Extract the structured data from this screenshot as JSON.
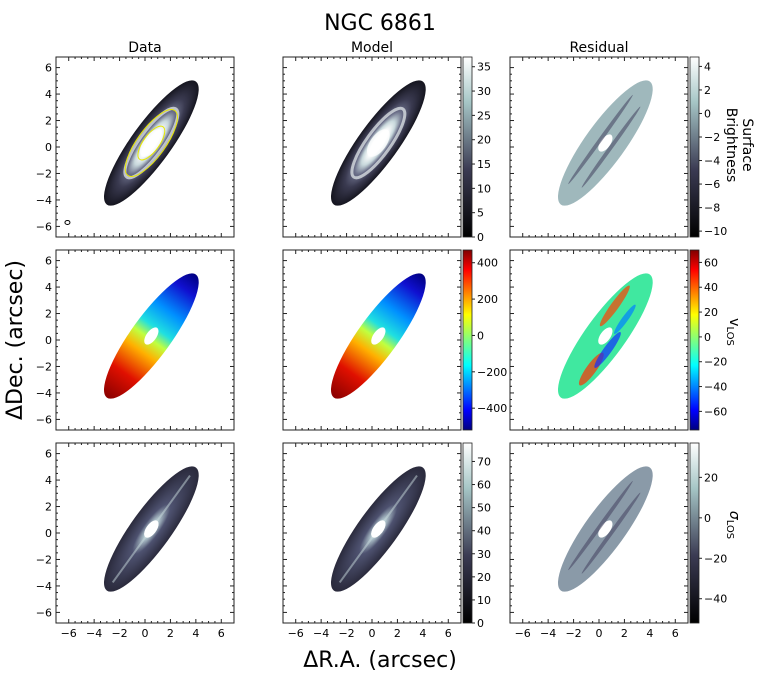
{
  "chart_data": {
    "type": "heatmap",
    "title": "NGC 6861",
    "xlabel": "ΔR.A. (arcsec)",
    "ylabel": "ΔDec. (arcsec)",
    "xlim": [
      -7,
      7
    ],
    "ylim": [
      -6.8,
      6.8
    ],
    "xticks": [
      -6,
      -4,
      -2,
      0,
      2,
      4,
      6
    ],
    "yticks": [
      -6,
      -4,
      -2,
      0,
      2,
      4,
      6
    ],
    "column_titles": [
      "Data",
      "Model",
      "Residual"
    ],
    "rows": [
      {
        "quantity": "Surface Brightness",
        "label_lines": [
          "Surface",
          "Brightness"
        ],
        "colormap": "bone",
        "model_colorbar": {
          "range": [
            0,
            37
          ],
          "ticks": [
            0,
            5,
            10,
            15,
            20,
            25,
            30,
            35
          ]
        },
        "residual_colorbar": {
          "range": [
            -10.5,
            4.8
          ],
          "ticks": [
            -10,
            -8,
            -6,
            -4,
            -2,
            0,
            2,
            4
          ]
        }
      },
      {
        "quantity": "v_LOS",
        "label_main": "v",
        "label_sub": "LOS",
        "colormap": "jet",
        "model_colorbar": {
          "range": [
            -520,
            470
          ],
          "ticks": [
            -400,
            -200,
            0,
            200,
            400
          ]
        },
        "residual_colorbar": {
          "range": [
            -75,
            70
          ],
          "ticks": [
            -60,
            -40,
            -20,
            0,
            20,
            40,
            60
          ]
        }
      },
      {
        "quantity": "σ_LOS",
        "label_main": "σ",
        "label_sub": "LOS",
        "colormap": "bone",
        "model_colorbar": {
          "range": [
            0,
            78
          ],
          "ticks": [
            0,
            10,
            20,
            30,
            40,
            50,
            60,
            70
          ]
        },
        "residual_colorbar": {
          "range": [
            -52,
            37
          ],
          "ticks": [
            -40,
            -20,
            0,
            20
          ]
        }
      }
    ],
    "galaxy_geometry": {
      "center": [
        0.5,
        0.3
      ],
      "major_axis_end_sw": [
        -3,
        -4.3
      ],
      "major_axis_end_ne": [
        4,
        5
      ]
    }
  }
}
